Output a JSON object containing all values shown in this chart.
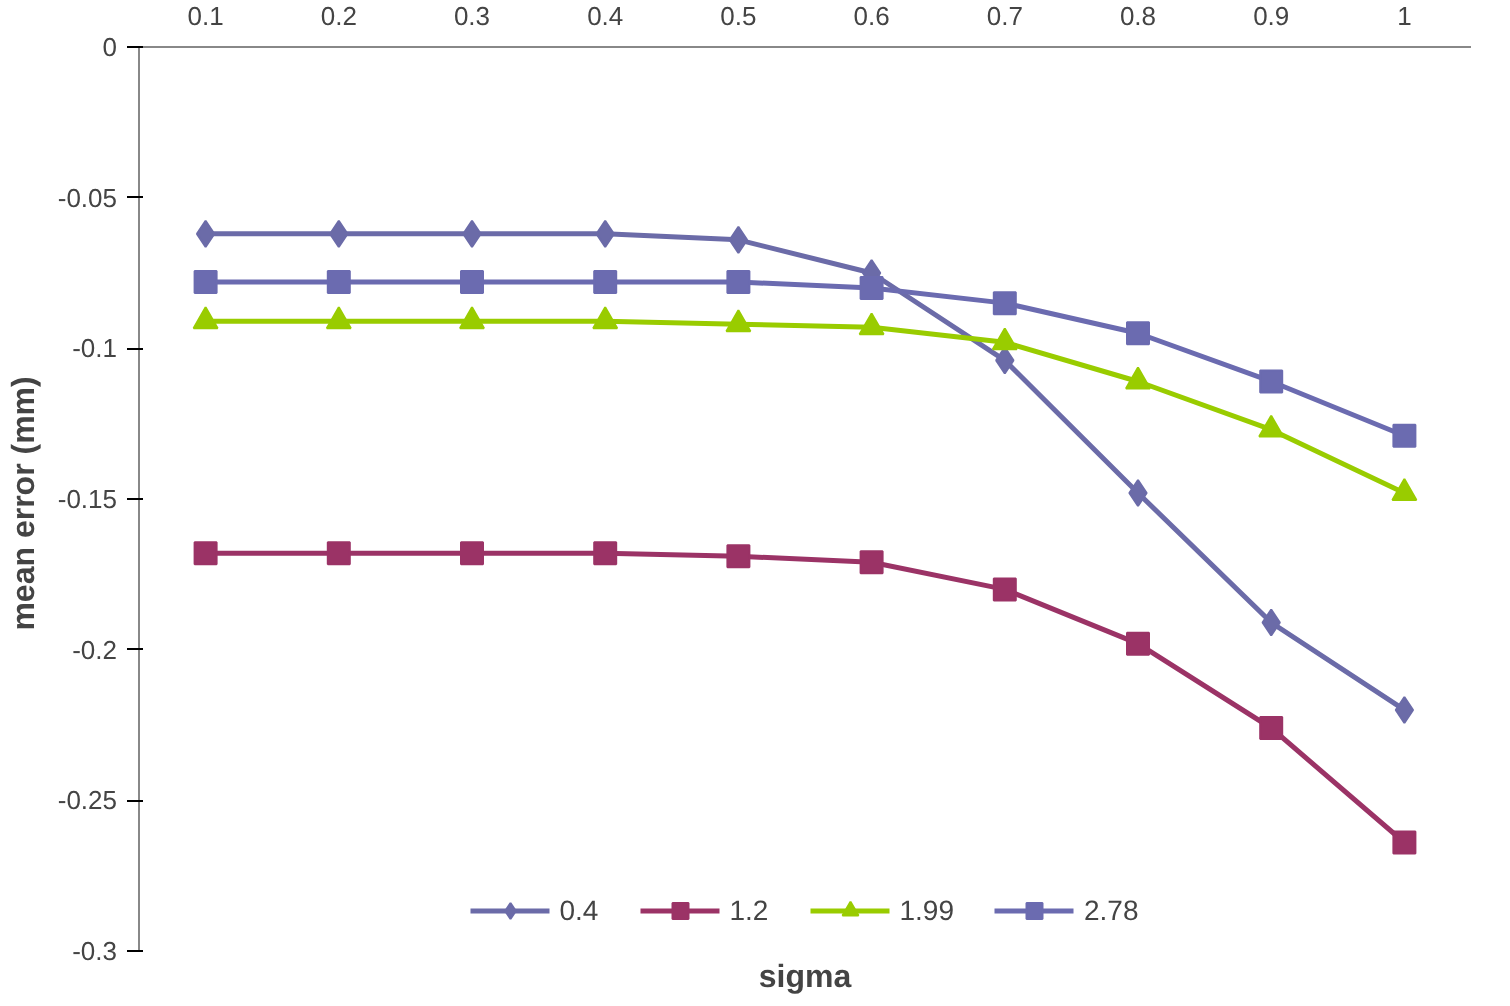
{
  "chart_data": {
    "type": "line",
    "xlabel": "sigma",
    "ylabel": "mean error  (mm)",
    "categories": [
      "0.1",
      "0.2",
      "0.3",
      "0.4",
      "0.5",
      "0.6",
      "0.7",
      "0.8",
      "0.9",
      "1"
    ],
    "ylim": [
      -0.3,
      0
    ],
    "yticks": [
      0,
      -0.05,
      -0.1,
      -0.15,
      -0.2,
      -0.25,
      -0.3
    ],
    "grid": false,
    "legend": "bottom",
    "series": [
      {
        "name": "0.4",
        "color": "#6b6ba8",
        "marker": "diamond",
        "values": [
          -0.062,
          -0.062,
          -0.062,
          -0.062,
          -0.064,
          -0.075,
          -0.104,
          -0.148,
          -0.191,
          -0.22
        ]
      },
      {
        "name": "1.2",
        "color": "#9b3366",
        "marker": "square",
        "values": [
          -0.168,
          -0.168,
          -0.168,
          -0.168,
          -0.169,
          -0.171,
          -0.18,
          -0.198,
          -0.226,
          -0.264
        ]
      },
      {
        "name": "1.99",
        "color": "#99cc00",
        "marker": "triangle",
        "values": [
          -0.091,
          -0.091,
          -0.091,
          -0.091,
          -0.092,
          -0.093,
          -0.098,
          -0.111,
          -0.127,
          -0.148
        ]
      },
      {
        "name": "2.78",
        "color": "#6b6bb0",
        "marker": "square",
        "values": [
          -0.078,
          -0.078,
          -0.078,
          -0.078,
          -0.078,
          -0.08,
          -0.085,
          -0.095,
          -0.111,
          -0.129
        ]
      }
    ]
  }
}
